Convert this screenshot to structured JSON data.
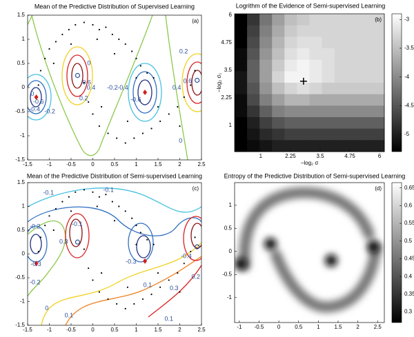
{
  "chart_data": [
    {
      "type": "contour",
      "title": "Mean of the Predictive Distribution of Supervised Learning",
      "panel_label": "(a)",
      "xlim": [
        -1.5,
        2.5
      ],
      "ylim": [
        -1.5,
        1.5
      ],
      "xticks": [
        -1.5,
        -1,
        -0.5,
        0,
        0.5,
        1,
        1.5,
        2,
        2.5
      ],
      "yticks": [
        -1.5,
        -1,
        -0.5,
        0,
        0.5,
        1,
        1.5
      ],
      "points": {
        "x": [
          -1.25,
          -1.2,
          -1.1,
          -1.0,
          -0.85,
          -0.7,
          -0.55,
          -0.4,
          -0.2,
          0,
          0.15,
          0.3,
          0.45,
          0.6,
          0.75,
          0.9,
          1.0,
          1.1,
          1.25,
          1.4,
          -0.9,
          -0.5,
          0.1,
          0.5,
          1.0,
          -0.2,
          -0.1,
          0.0,
          0.15,
          0.35,
          0.55,
          0.75,
          0.95,
          1.15,
          1.35,
          1.55,
          1.75,
          1.95,
          2.1,
          2.25,
          2.35,
          0.2,
          0.8,
          1.5,
          2.0
        ],
        "y": [
          0.05,
          0.35,
          0.6,
          0.8,
          0.95,
          1.1,
          1.2,
          1.3,
          1.35,
          1.3,
          1.2,
          1.25,
          1.1,
          1.0,
          0.9,
          0.75,
          0.6,
          0.45,
          0.3,
          0.2,
          0.5,
          0.9,
          1.0,
          0.7,
          0.2,
          0.1,
          -0.3,
          -0.55,
          -0.8,
          -0.95,
          -1.05,
          -1.15,
          -1.05,
          -0.95,
          -0.85,
          -0.7,
          -0.55,
          -0.4,
          -0.2,
          0.05,
          0.35,
          -0.4,
          -0.7,
          -0.4,
          -0.8
        ]
      },
      "labeled_points": [
        {
          "x": -1.3,
          "y": -0.2,
          "color": "#d02020",
          "marker": "diamond"
        },
        {
          "x": -0.35,
          "y": 0.25,
          "color": "#2a4f9a",
          "marker": "circle"
        },
        {
          "x": 1.2,
          "y": -0.1,
          "color": "#d02020",
          "marker": "diamond"
        },
        {
          "x": 2.4,
          "y": 0.15,
          "color": "#2a4f9a",
          "marker": "circle"
        }
      ],
      "contour_labels": [
        {
          "text": "0",
          "x": -0.09,
          "y": 0.5
        },
        {
          "text": "0.6",
          "x": -0.14,
          "y": 0.1
        },
        {
          "text": "0.4",
          "x": -0.04,
          "y": -0.01
        },
        {
          "text": "0.2",
          "x": -0.21,
          "y": -0.23
        },
        {
          "text": "-0.2",
          "x": 0.45,
          "y": -0.01
        },
        {
          "text": "-0.4",
          "x": 0.69,
          "y": -0.01
        },
        {
          "text": "-0.6",
          "x": 0.99,
          "y": -0.26
        },
        {
          "text": "-0.6",
          "x": -1.25,
          "y": -0.3
        },
        {
          "text": "-0.4",
          "x": -1.34,
          "y": -0.46
        },
        {
          "text": "-0.2",
          "x": -0.99,
          "y": -0.5
        },
        {
          "text": "0",
          "x": -1.39,
          "y": -0.14
        },
        {
          "text": "0.2",
          "x": 2.09,
          "y": 0.74
        },
        {
          "text": "0.6",
          "x": 2.18,
          "y": 0.13
        },
        {
          "text": "0.4",
          "x": 1.93,
          "y": -0.01
        },
        {
          "text": "0",
          "x": 2.02,
          "y": -1.11
        }
      ]
    },
    {
      "type": "heatmap",
      "title": "Logrithm of the Evidence of Semi-supervised Learning",
      "panel_label": "(b)",
      "xlabel": "−log₂ σ",
      "ylabel": "−log₂ σ₁",
      "xlim": [
        -0.1,
        6.2
      ],
      "ylim": [
        -0.19,
        6.06
      ],
      "xticks": [
        1,
        2.25,
        3.5,
        4.75,
        6
      ],
      "yticks": [
        1,
        2.25,
        3.5,
        4.75,
        6
      ],
      "z": [
        [
          -5.3,
          -4.8,
          -4.2,
          -3.8,
          -3.5,
          -3.4,
          -3.3,
          -3.3,
          -3.3,
          -3.3,
          -3.3,
          -3.3
        ],
        [
          -5.3,
          -4.7,
          -4.1,
          -3.7,
          -3.4,
          -3.3,
          -3.3,
          -3.3,
          -3.3,
          -3.3,
          -3.3,
          -3.3
        ],
        [
          -5.3,
          -4.6,
          -4.0,
          -3.6,
          -3.3,
          -3.2,
          -3.2,
          -3.3,
          -3.3,
          -3.3,
          -3.3,
          -3.3
        ],
        [
          -5.2,
          -4.5,
          -3.9,
          -3.5,
          -3.2,
          -3.1,
          -3.2,
          -3.2,
          -3.3,
          -3.3,
          -3.3,
          -3.3
        ],
        [
          -5.2,
          -4.4,
          -3.8,
          -3.4,
          -3.1,
          -3.0,
          -3.1,
          -3.2,
          -3.3,
          -3.3,
          -3.3,
          -3.3
        ],
        [
          -5.1,
          -4.4,
          -3.8,
          -3.3,
          -3.0,
          -3.0,
          -3.1,
          -3.2,
          -3.3,
          -3.3,
          -3.3,
          -3.3
        ],
        [
          -5.1,
          -4.5,
          -3.9,
          -3.5,
          -3.3,
          -3.2,
          -3.3,
          -3.4,
          -3.4,
          -3.4,
          -3.4,
          -3.4
        ],
        [
          -5.2,
          -4.6,
          -4.1,
          -3.8,
          -3.6,
          -3.6,
          -3.7,
          -3.7,
          -3.7,
          -3.7,
          -3.7,
          -3.7
        ],
        [
          -5.2,
          -4.8,
          -4.4,
          -4.1,
          -4.0,
          -4.0,
          -4.0,
          -4.0,
          -4.0,
          -4.0,
          -4.0,
          -4.0
        ],
        [
          -5.3,
          -5.0,
          -4.7,
          -4.5,
          -4.4,
          -4.4,
          -4.4,
          -4.4,
          -4.4,
          -4.4,
          -4.4,
          -4.4
        ],
        [
          -5.3,
          -5.1,
          -4.9,
          -4.8,
          -4.7,
          -4.7,
          -4.7,
          -4.7,
          -4.7,
          -4.7,
          -4.7,
          -4.7
        ],
        [
          -5.3,
          -5.2,
          -5.1,
          -5.0,
          -5.0,
          -5.0,
          -5.0,
          -5.0,
          -5.0,
          -5.0,
          -5.0,
          -5.0
        ]
      ],
      "clim": [
        -5.3,
        -2.9
      ],
      "cticks": [
        -3,
        -3.5,
        -4,
        -4.5,
        -5
      ],
      "marker": {
        "x": 2.8,
        "y": 3.0
      }
    },
    {
      "type": "contour",
      "title": "Mean of the Predictive Distribution of Semi-supervised Learning",
      "panel_label": "(c)",
      "xlim": [
        -1.5,
        2.5
      ],
      "ylim": [
        -1.5,
        1.5
      ],
      "xticks": [
        -1.5,
        -1,
        -0.5,
        0,
        0.5,
        1,
        1.5,
        2,
        2.5
      ],
      "yticks": [
        -1.5,
        -1,
        -0.5,
        0,
        0.5,
        1,
        1.5
      ],
      "points": {
        "x": [
          -1.25,
          -1.2,
          -1.1,
          -1.0,
          -0.85,
          -0.7,
          -0.55,
          -0.4,
          -0.2,
          0,
          0.15,
          0.3,
          0.45,
          0.6,
          0.75,
          0.9,
          1.0,
          1.1,
          1.25,
          1.4,
          -0.9,
          -0.5,
          0.1,
          0.5,
          1.0,
          -0.2,
          -0.1,
          0.0,
          0.15,
          0.35,
          0.55,
          0.75,
          0.95,
          1.15,
          1.35,
          1.55,
          1.75,
          1.95,
          2.1,
          2.25,
          2.35,
          0.2,
          0.8,
          1.5,
          2.0
        ],
        "y": [
          0.05,
          0.35,
          0.6,
          0.8,
          0.95,
          1.1,
          1.2,
          1.3,
          1.35,
          1.3,
          1.2,
          1.25,
          1.1,
          1.0,
          0.9,
          0.75,
          0.6,
          0.45,
          0.3,
          0.2,
          0.5,
          0.9,
          1.0,
          0.7,
          0.2,
          0.1,
          -0.3,
          -0.55,
          -0.8,
          -0.95,
          -1.05,
          -1.15,
          -1.05,
          -0.95,
          -0.85,
          -0.7,
          -0.55,
          -0.4,
          -0.2,
          0.05,
          0.35,
          -0.4,
          -0.7,
          -0.4,
          -0.8
        ]
      },
      "labeled_points": [
        {
          "x": -1.3,
          "y": -0.2,
          "color": "#d02020",
          "marker": "diamond"
        },
        {
          "x": -0.35,
          "y": 0.25,
          "color": "#2a4f9a",
          "marker": "circle"
        },
        {
          "x": 1.2,
          "y": -0.15,
          "color": "#d02020",
          "marker": "diamond"
        },
        {
          "x": 2.4,
          "y": 0.15,
          "color": "#2a4f9a",
          "marker": "circle"
        }
      ],
      "contour_labels": [
        {
          "text": "-0.1",
          "x": -1.02,
          "y": 1.28
        },
        {
          "text": "-0.1",
          "x": 0.36,
          "y": 1.34
        },
        {
          "text": "-0.2",
          "x": -1.33,
          "y": 0.57
        },
        {
          "text": "-0.1",
          "x": -0.36,
          "y": 0.62
        },
        {
          "text": "0.3",
          "x": -0.67,
          "y": 0.25
        },
        {
          "text": "-0.3",
          "x": -1.31,
          "y": -0.22
        },
        {
          "text": "-0.2",
          "x": -1.33,
          "y": -0.6
        },
        {
          "text": "-0.3",
          "x": 0.88,
          "y": -0.17
        },
        {
          "text": "0.1",
          "x": 1.26,
          "y": -0.66
        },
        {
          "text": "0.3",
          "x": 1.87,
          "y": -0.73
        },
        {
          "text": "0.2",
          "x": 2.37,
          "y": -0.49
        },
        {
          "text": "-0.4",
          "x": 2.15,
          "y": -0.05
        },
        {
          "text": "0",
          "x": -1.06,
          "y": -1.15
        },
        {
          "text": "0.1",
          "x": -0.55,
          "y": -1.3
        },
        {
          "text": "0.1",
          "x": 1.75,
          "y": -1.37
        }
      ]
    },
    {
      "type": "image",
      "title": "Entropy of the Predictive Distribution of Semi-supervised Learning",
      "panel_label": "(d)",
      "xlim": [
        -1.12,
        2.67
      ],
      "ylim": [
        -1.54,
        1.49
      ],
      "xticks": [
        -1,
        -0.5,
        0,
        0.5,
        1,
        1.5,
        2,
        2.5
      ],
      "yticks": [
        -1,
        -0.5,
        0,
        0.5,
        1
      ],
      "clim": [
        0.27,
        0.665
      ],
      "cticks": [
        0.3,
        0.35,
        0.4,
        0.45,
        0.5,
        0.55,
        0.6,
        0.65
      ]
    }
  ]
}
